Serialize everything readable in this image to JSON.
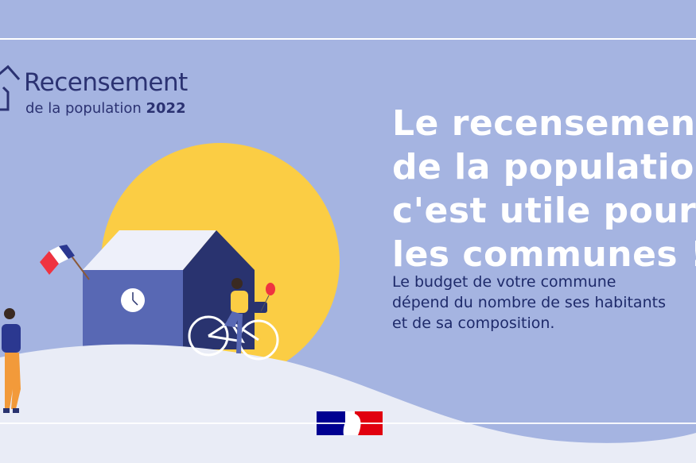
{
  "logo": {
    "title": "Recensement",
    "subtitle": "de la population",
    "year": "2022"
  },
  "headline": {
    "lines": [
      "Le recensement",
      "de la population",
      "c'est utile pour",
      "les communes !"
    ]
  },
  "body": {
    "lines": [
      "Le budget de votre commune",
      "dépend du nombre de ses habitants",
      "et de sa composition."
    ]
  },
  "colors": {
    "background": "#a5b4e1",
    "hill": "#e9ecf6",
    "sun": "#fbcd44",
    "house_front": "#5868b4",
    "house_side": "#29336f",
    "text_dark": "#2b3272"
  },
  "icons": [
    "house-logo-icon",
    "french-flag",
    "clock-icon",
    "bicycle",
    "balloon",
    "marianne-logo"
  ]
}
